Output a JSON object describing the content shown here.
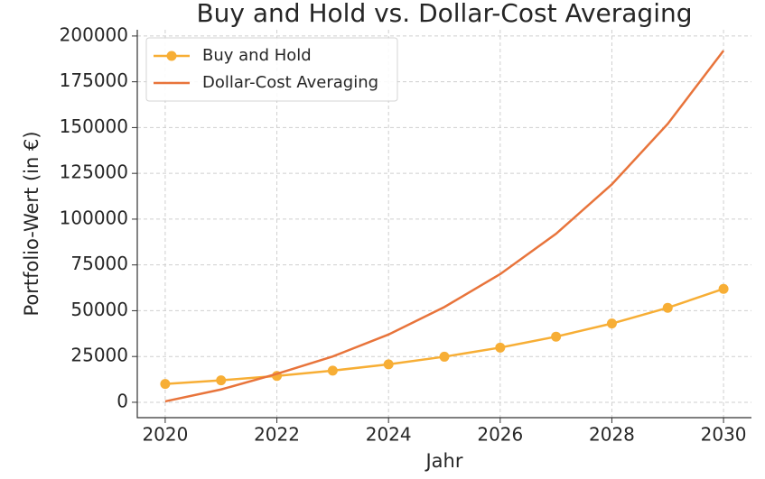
{
  "chart_data": {
    "type": "line",
    "title": "Buy and Hold vs. Dollar-Cost Averaging",
    "x_label": "Jahr",
    "y_label": "Portfolio-Wert (in €)",
    "x": [
      2020,
      2021,
      2022,
      2023,
      2024,
      2025,
      2026,
      2027,
      2028,
      2029,
      2030
    ],
    "series": [
      {
        "name": "Buy and Hold",
        "color": "#f7ae35",
        "marker": true,
        "values": [
          10000,
          12000,
          14400,
          17280,
          20736,
          24883,
          29860,
          35832,
          42998,
          51598,
          61917
        ]
      },
      {
        "name": "Dollar-Cost Averaging",
        "color": "#e8743b",
        "marker": false,
        "values": [
          500,
          7000,
          15500,
          25000,
          37000,
          52000,
          70000,
          92000,
          119000,
          152000,
          192000
        ]
      }
    ],
    "xlim": [
      2019.5,
      2030.5
    ],
    "xticks": [
      2020,
      2022,
      2024,
      2026,
      2028,
      2030
    ],
    "ylim": [
      -8400,
      203400
    ],
    "yticks": [
      0,
      25000,
      50000,
      75000,
      100000,
      125000,
      150000,
      175000,
      200000
    ],
    "grid": true,
    "legend": "upper left"
  }
}
